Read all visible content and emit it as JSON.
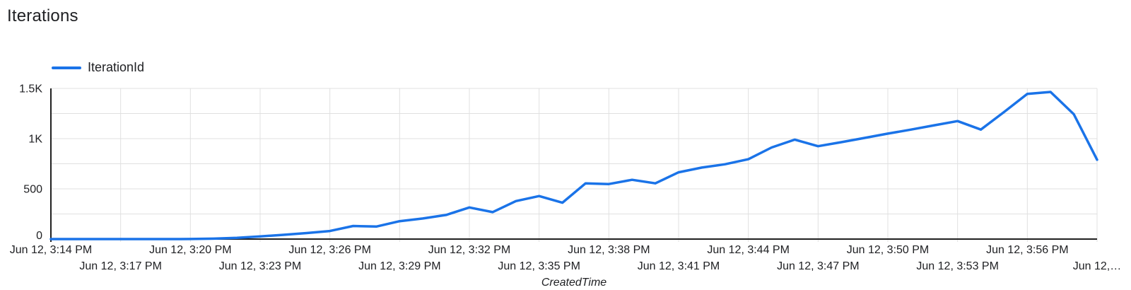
{
  "colors": {
    "series_blue": "#1a73e8",
    "gridline": "#e0e0e0",
    "axis": "#212121",
    "text": "#202124"
  },
  "chart_data": {
    "type": "line",
    "title": "Iterations",
    "xlabel": "CreatedTime",
    "ylabel": "",
    "legend_position": "top-left",
    "grid": true,
    "ylim": [
      0,
      1500
    ],
    "y_gridline_step": 250,
    "x_tick_step_minutes": 3,
    "y_ticks": [
      {
        "value": 0,
        "label": "0"
      },
      {
        "value": 500,
        "label": "500"
      },
      {
        "value": 1000,
        "label": "1K"
      },
      {
        "value": 1500,
        "label": "1.5K"
      }
    ],
    "x_ticks": [
      {
        "offset": 0,
        "row": 1,
        "label": "Jun 12, 3:14 PM"
      },
      {
        "offset": 3,
        "row": 2,
        "label": "Jun 12, 3:17 PM"
      },
      {
        "offset": 6,
        "row": 1,
        "label": "Jun 12, 3:20 PM"
      },
      {
        "offset": 9,
        "row": 2,
        "label": "Jun 12, 3:23 PM"
      },
      {
        "offset": 12,
        "row": 1,
        "label": "Jun 12, 3:26 PM"
      },
      {
        "offset": 15,
        "row": 2,
        "label": "Jun 12, 3:29 PM"
      },
      {
        "offset": 18,
        "row": 1,
        "label": "Jun 12, 3:32 PM"
      },
      {
        "offset": 21,
        "row": 2,
        "label": "Jun 12, 3:35 PM"
      },
      {
        "offset": 24,
        "row": 1,
        "label": "Jun 12, 3:38 PM"
      },
      {
        "offset": 27,
        "row": 2,
        "label": "Jun 12, 3:41 PM"
      },
      {
        "offset": 30,
        "row": 1,
        "label": "Jun 12, 3:44 PM"
      },
      {
        "offset": 33,
        "row": 2,
        "label": "Jun 12, 3:47 PM"
      },
      {
        "offset": 36,
        "row": 1,
        "label": "Jun 12, 3:50 PM"
      },
      {
        "offset": 39,
        "row": 2,
        "label": "Jun 12, 3:53 PM"
      },
      {
        "offset": 42,
        "row": 1,
        "label": "Jun 12, 3:56 PM"
      },
      {
        "offset": 45,
        "row": 2,
        "label": "Jun 12,…",
        "truncated": true
      }
    ],
    "x_date": "Jun 12",
    "x_times": [
      "3:14 PM",
      "3:15 PM",
      "3:16 PM",
      "3:17 PM",
      "3:18 PM",
      "3:19 PM",
      "3:20 PM",
      "3:21 PM",
      "3:22 PM",
      "3:23 PM",
      "3:24 PM",
      "3:25 PM",
      "3:26 PM",
      "3:27 PM",
      "3:28 PM",
      "3:29 PM",
      "3:30 PM",
      "3:31 PM",
      "3:32 PM",
      "3:33 PM",
      "3:34 PM",
      "3:35 PM",
      "3:36 PM",
      "3:37 PM",
      "3:38 PM",
      "3:39 PM",
      "3:40 PM",
      "3:41 PM",
      "3:42 PM",
      "3:43 PM",
      "3:44 PM",
      "3:45 PM",
      "3:46 PM",
      "3:47 PM",
      "3:48 PM",
      "3:49 PM",
      "3:50 PM",
      "3:51 PM",
      "3:52 PM",
      "3:53 PM",
      "3:54 PM",
      "3:55 PM",
      "3:56 PM",
      "3:57 PM",
      "3:58 PM",
      "3:59 PM"
    ],
    "series": [
      {
        "name": "IterationId",
        "color": "#1a73e8",
        "values": [
          0,
          0,
          0,
          0,
          0,
          0,
          1,
          4,
          12,
          27,
          42,
          60,
          80,
          130,
          125,
          178,
          205,
          240,
          315,
          268,
          378,
          428,
          362,
          555,
          548,
          590,
          555,
          665,
          712,
          745,
          795,
          912,
          990,
          925,
          965,
          1007,
          1050,
          1090,
          1133,
          1175,
          1090,
          1265,
          1445,
          1465,
          1243,
          790
        ]
      }
    ]
  }
}
